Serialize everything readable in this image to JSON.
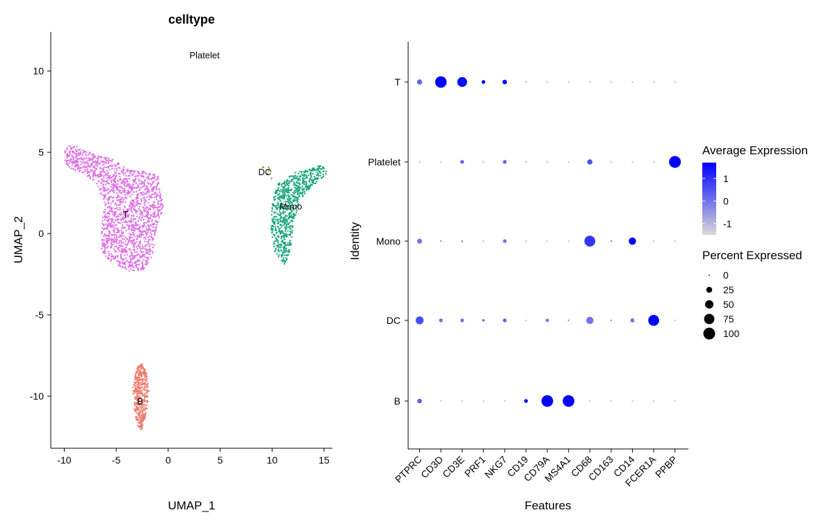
{
  "chart_data": [
    {
      "type": "scatter",
      "title": "celltype",
      "xlabel": "UMAP_1",
      "ylabel": "UMAP_2",
      "xlim": [
        -11.3,
        15.8
      ],
      "ylim": [
        -13.2,
        12.4
      ],
      "xticks": [
        -10,
        -5,
        0,
        5,
        10,
        15
      ],
      "yticks": [
        10,
        5,
        0,
        -5,
        -10
      ],
      "xtick_labels": [
        "-10",
        "-5",
        "0",
        "5",
        "10",
        "15"
      ],
      "ytick_labels": [
        "10",
        "5",
        "0",
        "-5",
        "-10"
      ],
      "grid": false,
      "point_size": 1.2,
      "clusters": [
        {
          "name": "T",
          "label": "T",
          "color": "#dd70e6",
          "n": 1700,
          "label_x": -4.1,
          "label_y": 1.2,
          "polygon": [
            [
              -9.9,
              5.3
            ],
            [
              -9.2,
              5.5
            ],
            [
              -8.0,
              5.1
            ],
            [
              -6.5,
              4.8
            ],
            [
              -5.4,
              4.6
            ],
            [
              -4.0,
              4.0
            ],
            [
              -2.7,
              3.9
            ],
            [
              -1.0,
              3.6
            ],
            [
              -0.7,
              2.4
            ],
            [
              -0.4,
              1.6
            ],
            [
              -0.9,
              0.9
            ],
            [
              -1.3,
              -0.3
            ],
            [
              -1.4,
              -1.4
            ],
            [
              -2.3,
              -2.2
            ],
            [
              -3.4,
              -2.4
            ],
            [
              -5.1,
              -1.9
            ],
            [
              -6.5,
              -1.2
            ],
            [
              -6.4,
              0.3
            ],
            [
              -6.2,
              2.0
            ],
            [
              -6.8,
              3.0
            ],
            [
              -7.9,
              3.6
            ],
            [
              -9.4,
              4.0
            ],
            [
              -10.0,
              4.3
            ]
          ]
        },
        {
          "name": "Mono",
          "label": "Mono",
          "color": "#1aa77a",
          "n": 750,
          "label_x": 11.8,
          "label_y": 1.7,
          "polygon": [
            [
              10.4,
              3.0
            ],
            [
              12.0,
              3.7
            ],
            [
              13.4,
              4.0
            ],
            [
              14.8,
              4.2
            ],
            [
              15.4,
              3.7
            ],
            [
              14.0,
              3.0
            ],
            [
              12.7,
              2.1
            ],
            [
              12.0,
              0.5
            ],
            [
              11.8,
              -1.1
            ],
            [
              11.2,
              -1.9
            ],
            [
              10.3,
              -1.2
            ],
            [
              9.9,
              0.1
            ],
            [
              10.0,
              1.8
            ]
          ]
        },
        {
          "name": "DC",
          "label": "DC",
          "color": "#7a9a1e",
          "n": 8,
          "label_x": 9.3,
          "label_y": 3.8,
          "polygon": [
            [
              9.2,
              4.3
            ],
            [
              9.9,
              4.0
            ],
            [
              10.0,
              3.0
            ],
            [
              9.6,
              3.6
            ],
            [
              9.0,
              3.9
            ]
          ]
        },
        {
          "name": "B",
          "label": "B",
          "color": "#ef7a6c",
          "n": 400,
          "label_x": -2.7,
          "label_y": -10.3,
          "polygon": [
            [
              -2.6,
              -7.9
            ],
            [
              -2.1,
              -8.5
            ],
            [
              -1.8,
              -9.6
            ],
            [
              -2.0,
              -10.8
            ],
            [
              -2.3,
              -11.6
            ],
            [
              -2.6,
              -12.1
            ],
            [
              -3.0,
              -11.7
            ],
            [
              -3.3,
              -10.6
            ],
            [
              -3.4,
              -9.5
            ],
            [
              -3.1,
              -8.4
            ]
          ]
        },
        {
          "name": "Platelet",
          "label": "Platelet",
          "color": "#f0a030",
          "n": 0,
          "label_x": 3.5,
          "label_y": 11.0,
          "polygon": []
        }
      ]
    },
    {
      "type": "dot",
      "xlabel": "Features",
      "ylabel": "Identity",
      "features": [
        "PTPRC",
        "CD3D",
        "CD3E",
        "PRF1",
        "NKG7",
        "CD19",
        "CD79A",
        "MS4A1",
        "CD68",
        "CD163",
        "CD14",
        "FCER1A",
        "PPBP"
      ],
      "identities": [
        "B",
        "DC",
        "Mono",
        "Platelet",
        "T"
      ],
      "percent_expressed": {
        "T": [
          20,
          95,
          70,
          10,
          15,
          1,
          1,
          1,
          1,
          1,
          1,
          1,
          1
        ],
        "Platelet": [
          1,
          1,
          10,
          1,
          10,
          1,
          1,
          1,
          20,
          1,
          1,
          1,
          100
        ],
        "Mono": [
          18,
          2,
          3,
          1,
          10,
          1,
          1,
          1,
          85,
          2,
          38,
          1,
          1
        ],
        "DC": [
          45,
          10,
          10,
          5,
          10,
          1,
          8,
          2,
          38,
          2,
          12,
          85,
          1
        ],
        "B": [
          15,
          1,
          1,
          1,
          1,
          10,
          98,
          98,
          1,
          1,
          1,
          1,
          1
        ]
      },
      "average_expression": {
        "T": [
          0.2,
          1.7,
          1.5,
          1.7,
          1.6,
          -0.5,
          -0.5,
          -0.5,
          -0.5,
          -0.5,
          -0.5,
          -0.5,
          -0.5
        ],
        "Platelet": [
          -0.5,
          -0.5,
          0.3,
          -0.5,
          0.3,
          -0.5,
          -0.5,
          -0.5,
          0.5,
          -0.5,
          -0.5,
          -0.5,
          1.7
        ],
        "Mono": [
          0.0,
          -0.5,
          -0.5,
          -0.5,
          0.0,
          -0.5,
          -0.5,
          -0.5,
          0.9,
          0.0,
          1.7,
          -0.5,
          -0.5
        ],
        "DC": [
          0.6,
          0.0,
          0.0,
          0.0,
          0.3,
          -0.5,
          0.0,
          -0.5,
          0.0,
          -0.5,
          0.0,
          1.7,
          -0.5
        ],
        "B": [
          0.3,
          -0.5,
          -0.5,
          -0.5,
          -0.5,
          1.7,
          1.7,
          1.7,
          -0.5,
          -0.5,
          -0.5,
          -0.5,
          -0.5
        ]
      },
      "color_low": "#d9d9d9",
      "color_high": "#0000ff",
      "grid": false,
      "legend_placement": "right",
      "color_legend": {
        "title": "Average Expression",
        "range": [
          -1.5,
          1.7
        ],
        "ticks": [
          1,
          0,
          -1
        ],
        "tick_labels": [
          "1",
          "0",
          "-1"
        ]
      },
      "size_legend": {
        "title": "Percent Expressed",
        "values": [
          0,
          25,
          50,
          75,
          100
        ],
        "labels": [
          "0",
          "25",
          "50",
          "75",
          "100"
        ]
      }
    }
  ]
}
